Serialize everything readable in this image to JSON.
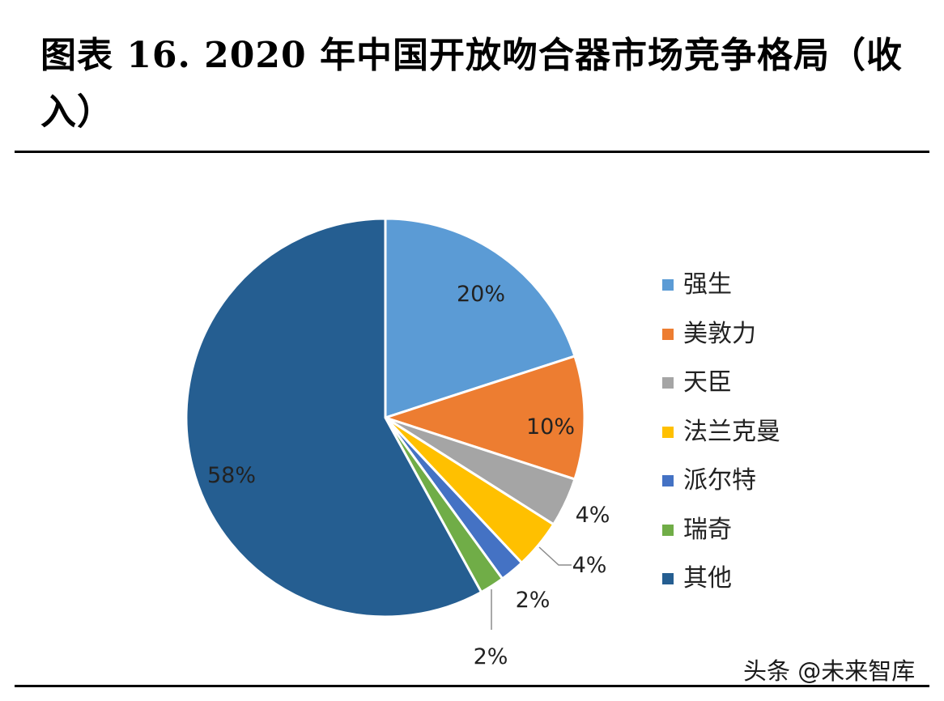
{
  "title": "图表 16. 2020 年中国开放吻合器市场竞争格局（收入）",
  "watermark": "头条 @未来智库",
  "chart_data": {
    "type": "pie",
    "title": "图表 16. 2020 年中国开放吻合器市场竞争格局（收入）",
    "legend_position": "right",
    "start_angle_deg": 0,
    "direction": "clockwise",
    "slices": [
      {
        "name": "强生",
        "value": 20,
        "label": "20%",
        "color": "#5B9BD5"
      },
      {
        "name": "美敦力",
        "value": 10,
        "label": "10%",
        "color": "#ED7D31"
      },
      {
        "name": "天臣",
        "value": 4,
        "label": "4%",
        "color": "#A5A5A5"
      },
      {
        "name": "法兰克曼",
        "value": 4,
        "label": "4%",
        "color": "#FFC000"
      },
      {
        "name": "派尔特",
        "value": 2,
        "label": "2%",
        "color": "#4472C4"
      },
      {
        "name": "瑞奇",
        "value": 2,
        "label": "2%",
        "color": "#70AD47"
      },
      {
        "name": "其他",
        "value": 58,
        "label": "58%",
        "color": "#255E91"
      }
    ]
  }
}
